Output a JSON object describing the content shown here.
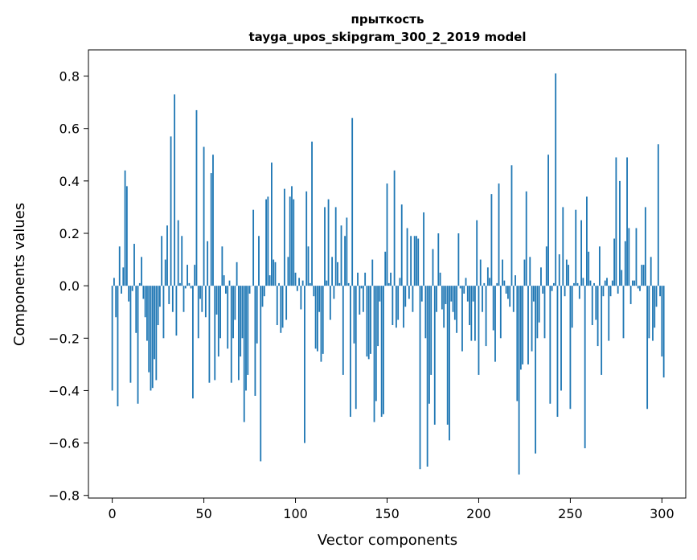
{
  "chart_data": {
    "type": "bar",
    "title_line1": "прыткость",
    "title_line2": "tayga_upos_skipgram_300_2_2019 model",
    "xlabel": "Vector components",
    "ylabel": "Components values",
    "xlim": [
      -13,
      313
    ],
    "ylim": [
      -0.81,
      0.9
    ],
    "xticks": [
      0,
      50,
      100,
      150,
      200,
      250,
      300
    ],
    "xtick_labels": [
      "0",
      "50",
      "100",
      "150",
      "200",
      "250",
      "300"
    ],
    "yticks": [
      -0.8,
      -0.6,
      -0.4,
      -0.2,
      0.0,
      0.2,
      0.4,
      0.6,
      0.8
    ],
    "ytick_labels": [
      "−0.8",
      "−0.6",
      "−0.4",
      "−0.2",
      "0.0",
      "0.2",
      "0.4",
      "0.6",
      "0.8"
    ],
    "bar_color": "#1f77b4",
    "grid": false,
    "values": [
      -0.4,
      0.03,
      -0.12,
      -0.46,
      0.15,
      -0.03,
      0.07,
      0.44,
      0.38,
      -0.06,
      -0.37,
      -0.02,
      0.16,
      -0.18,
      -0.45,
      0.01,
      0.11,
      -0.05,
      -0.12,
      -0.21,
      -0.33,
      -0.4,
      -0.39,
      -0.28,
      -0.36,
      -0.15,
      -0.08,
      0.19,
      -0.2,
      0.1,
      0.23,
      -0.07,
      0.57,
      -0.1,
      0.73,
      -0.19,
      0.25,
      0.01,
      0.19,
      -0.1,
      -0.01,
      0.08,
      0.01,
      -0.01,
      -0.43,
      0.08,
      0.67,
      -0.2,
      -0.05,
      -0.1,
      0.53,
      -0.12,
      0.17,
      -0.37,
      0.43,
      0.5,
      -0.36,
      -0.11,
      -0.27,
      -0.2,
      0.15,
      0.04,
      -0.03,
      -0.24,
      0.02,
      -0.37,
      -0.2,
      -0.13,
      0.09,
      -0.36,
      -0.27,
      -0.2,
      -0.52,
      -0.4,
      -0.34,
      -0.03,
      0.0,
      0.29,
      -0.42,
      -0.22,
      0.19,
      -0.67,
      -0.08,
      -0.04,
      0.33,
      0.34,
      0.04,
      0.47,
      0.1,
      0.09,
      -0.15,
      0.01,
      -0.18,
      -0.16,
      0.37,
      -0.13,
      0.11,
      0.34,
      0.38,
      0.33,
      0.05,
      -0.02,
      0.03,
      -0.09,
      0.02,
      -0.6,
      0.36,
      0.15,
      0.01,
      0.55,
      -0.04,
      -0.24,
      -0.25,
      -0.1,
      -0.29,
      -0.26,
      0.3,
      0.02,
      0.33,
      -0.13,
      0.11,
      -0.05,
      0.3,
      0.09,
      0.01,
      0.23,
      -0.34,
      0.19,
      0.26,
      0.01,
      -0.5,
      0.64,
      -0.22,
      -0.47,
      0.05,
      -0.11,
      -0.01,
      -0.1,
      0.05,
      -0.27,
      -0.28,
      -0.26,
      0.1,
      -0.52,
      -0.44,
      -0.23,
      -0.06,
      -0.5,
      -0.49,
      0.13,
      0.39,
      0.01,
      0.05,
      -0.15,
      0.44,
      -0.16,
      -0.13,
      0.03,
      0.31,
      -0.16,
      -0.08,
      0.22,
      -0.05,
      0.19,
      -0.1,
      0.19,
      0.19,
      0.18,
      -0.7,
      -0.06,
      0.28,
      -0.2,
      -0.69,
      -0.45,
      -0.34,
      0.14,
      -0.53,
      -0.1,
      0.2,
      0.05,
      -0.09,
      -0.16,
      -0.07,
      -0.53,
      -0.59,
      -0.06,
      -0.1,
      -0.13,
      -0.18,
      0.2,
      -0.01,
      -0.25,
      -0.03,
      0.03,
      -0.06,
      -0.15,
      -0.21,
      -0.06,
      -0.21,
      0.25,
      -0.34,
      0.1,
      -0.1,
      0.01,
      -0.23,
      0.07,
      0.03,
      0.35,
      -0.17,
      -0.29,
      0.01,
      0.39,
      -0.2,
      0.1,
      0.02,
      -0.03,
      -0.05,
      -0.08,
      0.46,
      -0.1,
      0.04,
      -0.44,
      -0.72,
      -0.32,
      -0.3,
      0.1,
      0.36,
      -0.3,
      0.11,
      -0.25,
      -0.06,
      -0.64,
      -0.2,
      -0.14,
      0.07,
      -0.03,
      -0.2,
      0.15,
      0.5,
      -0.45,
      -0.02,
      0.01,
      0.81,
      -0.5,
      0.12,
      -0.4,
      0.3,
      -0.04,
      0.1,
      0.08,
      -0.47,
      -0.16,
      0.01,
      0.29,
      0.01,
      -0.05,
      0.25,
      0.03,
      -0.62,
      0.34,
      0.13,
      0.02,
      -0.15,
      0.01,
      -0.13,
      -0.23,
      0.15,
      -0.34,
      -0.04,
      0.02,
      0.03,
      -0.21,
      -0.04,
      0.02,
      0.18,
      0.49,
      -0.03,
      0.4,
      0.06,
      -0.2,
      0.17,
      0.49,
      0.22,
      -0.07,
      0.02,
      0.02,
      0.22,
      -0.01,
      -0.02,
      0.08,
      0.08,
      0.3,
      -0.47,
      -0.2,
      0.11,
      -0.21,
      -0.16,
      -0.08,
      0.54,
      -0.04,
      -0.27,
      -0.35
    ]
  }
}
